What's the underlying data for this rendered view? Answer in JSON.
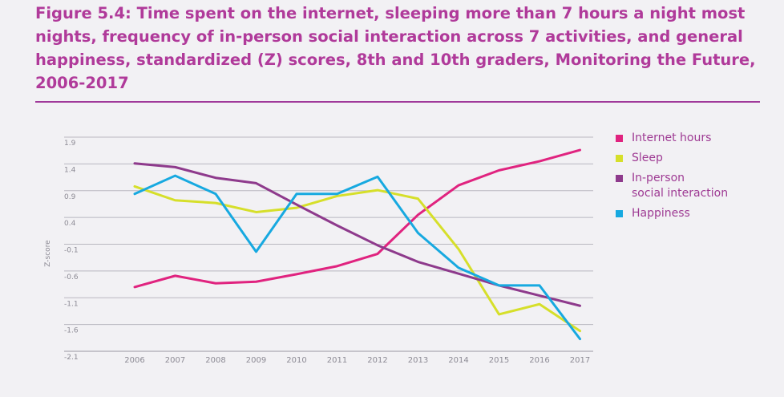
{
  "title": "Figure 5.4: Time spent on the internet, sleeping more than 7 hours a night most nights, frequency of in-person social interaction across 7 activities, and general happiness, standardized (Z) scores, 8th and 10th graders, Monitoring the Future, 2006-2017",
  "chart_data": {
    "type": "line",
    "title": "Figure 5.4: Time spent on the internet, sleeping more than 7 hours a night most nights, frequency of in-person social interaction across 7 activities, and general happiness, standardized (Z) scores, 8th and 10th graders, Monitoring the Future, 2006-2017",
    "xlabel": "",
    "ylabel": "Z-score",
    "x": [
      "2006",
      "2007",
      "2008",
      "2009",
      "2010",
      "2011",
      "2012",
      "2013",
      "2014",
      "2015",
      "2016",
      "2017"
    ],
    "y_ticks": [
      "1.9",
      "1.4",
      "0.9",
      "0.4",
      "-0.1",
      "-0.6",
      "-1.1",
      "-1.6",
      "-2.1"
    ],
    "ylim": [
      -2.1,
      1.9
    ],
    "grid": true,
    "legend_position": "right",
    "series": [
      {
        "name": "Internet hours",
        "color": "#e0237f",
        "values": [
          -0.9,
          -0.69,
          -0.83,
          -0.8,
          -0.66,
          -0.51,
          -0.28,
          0.45,
          1.0,
          1.28,
          1.45,
          1.66
        ]
      },
      {
        "name": "Sleep",
        "color": "#d6df2a",
        "values": [
          0.98,
          0.72,
          0.67,
          0.5,
          0.58,
          0.8,
          0.91,
          0.75,
          -0.19,
          -1.41,
          -1.22,
          -1.72
        ]
      },
      {
        "name": "In-person social interaction",
        "color": "#8e3a8c",
        "values": [
          1.41,
          1.34,
          1.14,
          1.04,
          0.64,
          0.25,
          -0.12,
          -0.43,
          -0.65,
          -0.87,
          -1.06,
          -1.25
        ]
      },
      {
        "name": "Happiness",
        "color": "#17a9e0",
        "values": [
          0.84,
          1.18,
          0.84,
          -0.24,
          0.84,
          0.84,
          1.16,
          0.11,
          -0.54,
          -0.87,
          -0.87,
          -1.87
        ]
      }
    ]
  },
  "legend": {
    "items": [
      {
        "label": "Internet hours",
        "color": "#e0237f"
      },
      {
        "label": "Sleep",
        "color": "#d6df2a"
      },
      {
        "label": "In-person\nsocial interaction",
        "color": "#8e3a8c"
      },
      {
        "label": "Happiness",
        "color": "#17a9e0"
      }
    ]
  }
}
